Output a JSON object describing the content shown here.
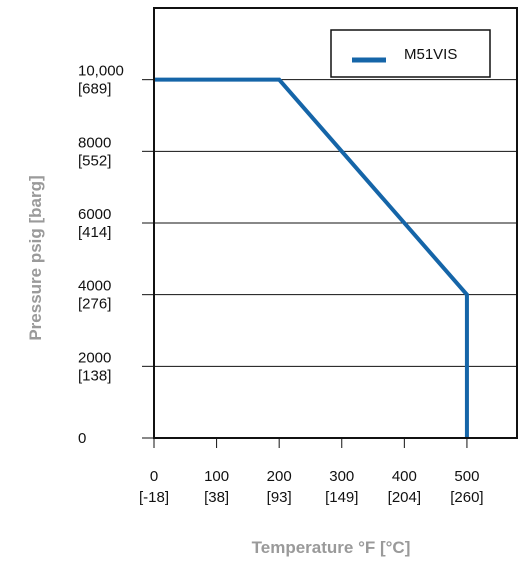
{
  "chart_data": {
    "type": "line",
    "xlabel": "Temperature °F [°C]",
    "ylabel": "Pressure psig [barg]",
    "xlim": [
      0,
      580
    ],
    "ylim": [
      0,
      12000
    ],
    "grid": "horizontal",
    "legend_placement": "top-right",
    "x_ticks": [
      {
        "value": 0,
        "label": "0",
        "sublabel": "[-18]"
      },
      {
        "value": 100,
        "label": "100",
        "sublabel": "[38]"
      },
      {
        "value": 200,
        "label": "200",
        "sublabel": "[93]"
      },
      {
        "value": 300,
        "label": "300",
        "sublabel": "[149]"
      },
      {
        "value": 400,
        "label": "400",
        "sublabel": "[204]"
      },
      {
        "value": 500,
        "label": "500",
        "sublabel": "[260]"
      }
    ],
    "y_ticks": [
      {
        "value": 0,
        "label": "0",
        "sublabel": ""
      },
      {
        "value": 2000,
        "label": "2000",
        "sublabel": "[138]"
      },
      {
        "value": 4000,
        "label": "4000",
        "sublabel": "[276]"
      },
      {
        "value": 6000,
        "label": "6000",
        "sublabel": "[414]"
      },
      {
        "value": 8000,
        "label": "8000",
        "sublabel": "[552]"
      },
      {
        "value": 10000,
        "label": "10,000",
        "sublabel": "[689]"
      }
    ],
    "series": [
      {
        "name": "M51VIS",
        "color": "#1565a8",
        "x": [
          0,
          200,
          500,
          500
        ],
        "y": [
          10000,
          10000,
          4000,
          0
        ]
      }
    ]
  }
}
